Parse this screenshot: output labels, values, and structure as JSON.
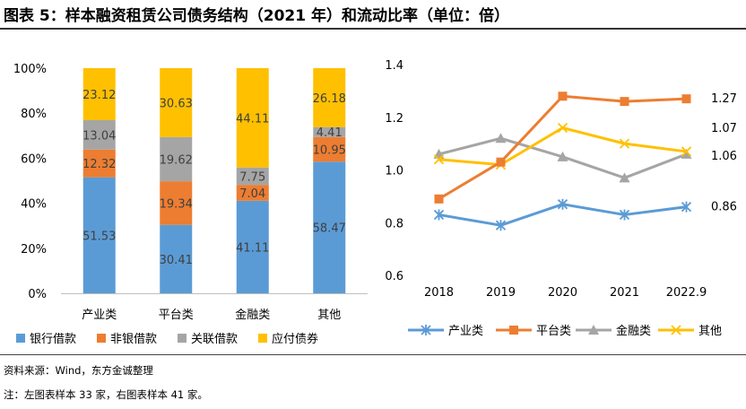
{
  "title": "图表 5：样本融资租赁公司债务结构（2021 年）和流动比率（单位：倍）",
  "footer": {
    "source": "资料来源：Wind，东方金诚整理",
    "note": "注：左图表样本 33 家，右图表样本 41 家。"
  },
  "colors": {
    "bank": "#5B9BD5",
    "nonbank": "#ED7D31",
    "related": "#A5A5A5",
    "bond": "#FFC000",
    "axis": "#BFBFBF",
    "grid": "#D9D9D9"
  },
  "chart_data": [
    {
      "type": "bar",
      "stacked": true,
      "title": "",
      "categories": [
        "产业类",
        "平台类",
        "金融类",
        "其他"
      ],
      "ylim": [
        0,
        100
      ],
      "yticks": [
        "0%",
        "20%",
        "40%",
        "60%",
        "80%",
        "100%"
      ],
      "series": [
        {
          "name": "银行借款",
          "values": [
            51.53,
            30.41,
            41.11,
            58.47
          ]
        },
        {
          "name": "非银借款",
          "values": [
            12.32,
            19.34,
            7.04,
            10.95
          ]
        },
        {
          "name": "关联借款",
          "values": [
            13.04,
            19.62,
            7.75,
            4.41
          ]
        },
        {
          "name": "应付债券",
          "values": [
            23.12,
            30.63,
            44.11,
            26.18
          ]
        }
      ],
      "legend_position": "bottom"
    },
    {
      "type": "line",
      "title": "",
      "x": [
        "2018",
        "2019",
        "2020",
        "2021",
        "2022.9"
      ],
      "ylim": [
        0.6,
        1.4
      ],
      "yticks": [
        "0.6",
        "0.8",
        "1.0",
        "1.2",
        "1.4"
      ],
      "series": [
        {
          "name": "产业类",
          "marker": "asterisk",
          "values": [
            0.83,
            0.79,
            0.87,
            0.83,
            0.86
          ],
          "end_label": "0.86"
        },
        {
          "name": "平台类",
          "marker": "square",
          "values": [
            0.89,
            1.03,
            1.28,
            1.26,
            1.27
          ],
          "end_label": "1.27"
        },
        {
          "name": "金融类",
          "marker": "triangle",
          "values": [
            1.06,
            1.12,
            1.05,
            0.97,
            1.06
          ],
          "end_label": "1.06"
        },
        {
          "name": "其他",
          "marker": "x",
          "values": [
            1.04,
            1.02,
            1.16,
            1.1,
            1.07
          ],
          "end_label": "1.07"
        }
      ],
      "legend_position": "bottom"
    }
  ]
}
